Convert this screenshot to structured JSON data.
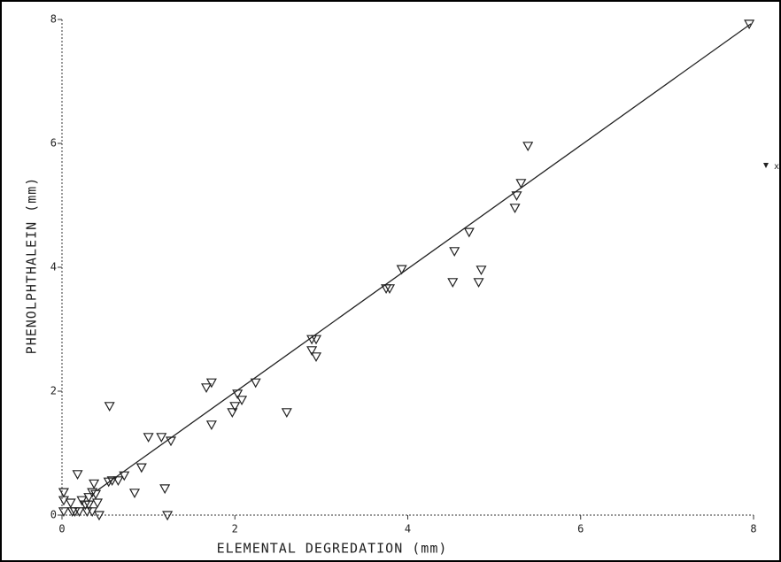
{
  "chart_data": {
    "type": "scatter",
    "x_label": "ELEMENTAL DEGREDATION (mm)",
    "y_label": "PHENOLPHTHALEIN (mm)",
    "annotation": "x",
    "xlim": [
      0,
      8
    ],
    "ylim": [
      0,
      8
    ],
    "xticks": [
      0,
      2,
      4,
      6,
      8
    ],
    "yticks": [
      0,
      2,
      4,
      6,
      8
    ],
    "color": "#222222",
    "points": {
      "x": [
        7.95,
        5.39,
        5.26,
        5.31,
        5.24,
        4.71,
        4.54,
        4.85,
        4.52,
        4.82,
        3.93,
        3.79,
        3.75,
        2.94,
        2.89,
        2.89,
        2.94,
        2.6,
        2.24,
        2.08,
        2.03,
        2.0,
        1.97,
        1.73,
        1.67,
        1.73,
        1.26,
        1.15,
        1.0,
        0.92,
        0.84,
        1.19,
        1.22,
        0.55,
        0.18,
        0.72,
        0.65,
        0.58,
        0.54,
        0.02,
        0.02,
        0.02,
        0.1,
        0.12,
        0.2,
        0.27,
        0.31,
        0.35,
        0.39,
        0.41,
        0.37,
        0.43,
        0.35,
        0.29,
        0.23,
        0.15,
        0.31
      ],
      "y": [
        7.93,
        5.96,
        5.16,
        5.36,
        4.96,
        4.57,
        4.26,
        3.96,
        3.76,
        3.76,
        3.97,
        3.66,
        3.66,
        2.84,
        2.84,
        2.66,
        2.56,
        1.66,
        2.14,
        1.86,
        1.96,
        1.76,
        1.66,
        2.14,
        2.06,
        1.46,
        1.2,
        1.26,
        1.26,
        0.77,
        0.36,
        0.43,
        0.0,
        1.76,
        0.66,
        0.64,
        0.56,
        0.56,
        0.54,
        0.37,
        0.24,
        0.06,
        0.2,
        0.06,
        0.06,
        0.17,
        0.29,
        0.37,
        0.34,
        0.2,
        0.51,
        0.0,
        0.06,
        0.06,
        0.24,
        0.06,
        0.17
      ]
    },
    "fit_line": {
      "x": [
        0.4,
        7.97
      ],
      "y": [
        0.39,
        7.93
      ]
    }
  }
}
